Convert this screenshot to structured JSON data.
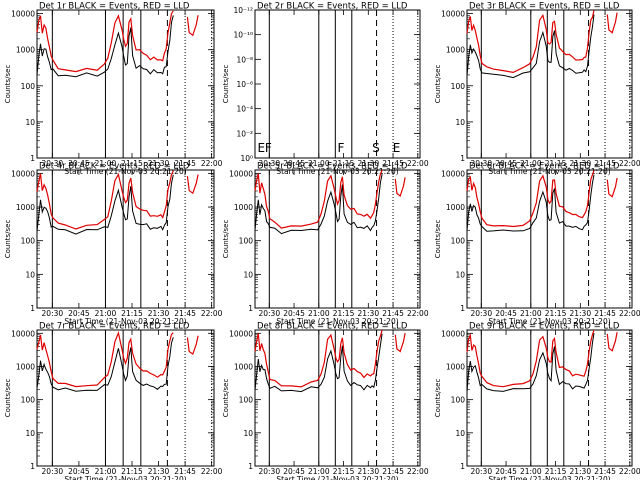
{
  "page": {
    "colors": {
      "events": "#000000",
      "lld": "#e00000",
      "frame": "#000000"
    }
  },
  "common": {
    "ylabel": "Counts/sec",
    "xlabel": "Start Time (21-Nov-03 20:21:20)",
    "x_tick_labels": [
      "20:30",
      "20:45",
      "21:00",
      "21:15",
      "21:30",
      "21:45",
      "22:00"
    ],
    "x_ticks_min": [
      8.67,
      23.67,
      38.67,
      53.67,
      68.67,
      83.67,
      98.67
    ],
    "x_range_min": [
      0,
      100
    ],
    "y_log_ticks": [
      "1",
      "10",
      "100",
      "1000",
      "10000"
    ],
    "y_range_log": [
      0,
      4.1
    ],
    "vlines_solid_min": [
      8.67,
      38.67,
      48.67,
      58.67
    ],
    "vline_dashed_min": 73.67,
    "vlines_dotted_min": [
      83.67,
      98.67
    ]
  },
  "chart_data": [
    {
      "type": "line",
      "title": "Det 1r BLACK = Events, RED = LLD",
      "series": [
        {
          "name": "Events"
        },
        {
          "name": "LLD"
        }
      ]
    },
    {
      "type": "line",
      "title": "Det 2r BLACK = Events, RED = LLD",
      "series": [],
      "y_axis_labels": [
        "10⁰",
        "10⁻²",
        "10⁻⁴",
        "10⁻⁶",
        "10⁻⁸",
        "10⁻¹⁰",
        "10⁻¹²"
      ],
      "markers": [
        {
          "label": "E",
          "x_min": 1.5
        },
        {
          "label": "F",
          "x_min": 6
        },
        {
          "label": "F",
          "x_min": 50
        },
        {
          "label": "S",
          "x_min": 71
        },
        {
          "label": "E",
          "x_min": 83.5
        }
      ]
    },
    {
      "type": "line",
      "title": "Det 3r BLACK = Events, RED = LLD",
      "series": [
        {
          "name": "Events"
        },
        {
          "name": "LLD"
        }
      ]
    },
    {
      "type": "line",
      "title": "Det 4r BLACK = Events, RED = LLD",
      "series": [
        {
          "name": "Events"
        },
        {
          "name": "LLD"
        }
      ]
    },
    {
      "type": "line",
      "title": "Det 5r BLACK = Events, RED = LLD",
      "series": [
        {
          "name": "Events"
        },
        {
          "name": "LLD"
        }
      ]
    },
    {
      "type": "line",
      "title": "Det 6r BLACK = Events, RED = LLD",
      "series": [
        {
          "name": "Events"
        },
        {
          "name": "LLD"
        }
      ]
    },
    {
      "type": "line",
      "title": "Det 7r BLACK = Events, RED = LLD",
      "series": [
        {
          "name": "Events"
        },
        {
          "name": "LLD"
        }
      ]
    },
    {
      "type": "line",
      "title": "Det 8r BLACK = Events, RED = LLD",
      "series": [
        {
          "name": "Events"
        },
        {
          "name": "LLD"
        }
      ]
    },
    {
      "type": "line",
      "title": "Det 9r BLACK = Events, RED = LLD",
      "series": [
        {
          "name": "Events"
        },
        {
          "name": "LLD"
        }
      ]
    }
  ],
  "base_profile": {
    "x_min": [
      0,
      1,
      2,
      3,
      4,
      5,
      6,
      7,
      8,
      9,
      12,
      16,
      22,
      28,
      34,
      38,
      40,
      42,
      44,
      46,
      48,
      49,
      50,
      51,
      52,
      53,
      54,
      56,
      58,
      60,
      62,
      64,
      66,
      68,
      70,
      71,
      72,
      73,
      74,
      75,
      76,
      77
    ],
    "events": [
      200,
      600,
      1500,
      700,
      1100,
      900,
      700,
      450,
      300,
      250,
      215,
      195,
      190,
      195,
      210,
      240,
      300,
      500,
      1500,
      3000,
      1200,
      600,
      400,
      450,
      2200,
      4000,
      700,
      350,
      320,
      300,
      280,
      250,
      240,
      240,
      230,
      250,
      280,
      350,
      900,
      2000,
      5000,
      9000
    ],
    "lld": [
      3000,
      6000,
      9000,
      3000,
      5000,
      3500,
      2200,
      1200,
      700,
      450,
      330,
      275,
      260,
      265,
      300,
      400,
      600,
      1400,
      6000,
      9000,
      3500,
      1800,
      1300,
      1600,
      5500,
      7000,
      2500,
      1100,
      900,
      800,
      700,
      600,
      550,
      540,
      520,
      560,
      700,
      1100,
      3000,
      6000,
      9000,
      12000
    ]
  }
}
